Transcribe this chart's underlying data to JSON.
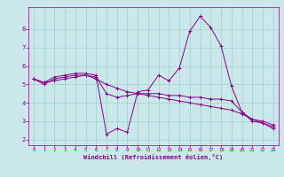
{
  "xlabel": "Windchill (Refroidissement éolien,°C)",
  "ylabel": "",
  "bg_color": "#cae8ea",
  "grid_color": "#9dcfcf",
  "line_color": "#880088",
  "xlim": [
    -0.5,
    23.5
  ],
  "ylim": [
    1.7,
    9.2
  ],
  "xticks": [
    0,
    1,
    2,
    3,
    4,
    5,
    6,
    7,
    8,
    9,
    10,
    11,
    12,
    13,
    14,
    15,
    16,
    17,
    18,
    19,
    20,
    21,
    22,
    23
  ],
  "yticks": [
    2,
    3,
    4,
    5,
    6,
    7,
    8
  ],
  "series": [
    {
      "x": [
        0,
        1,
        2,
        3,
        4,
        5,
        6,
        7,
        8,
        9,
        10,
        11,
        12,
        13,
        14,
        15,
        16,
        17,
        18,
        19,
        20,
        21,
        22,
        23
      ],
      "y": [
        5.3,
        5.1,
        5.4,
        5.5,
        5.6,
        5.6,
        5.5,
        2.3,
        2.6,
        2.4,
        4.6,
        4.7,
        5.5,
        5.2,
        5.9,
        7.9,
        8.7,
        8.1,
        7.1,
        4.9,
        3.5,
        3.0,
        2.9,
        2.7
      ]
    },
    {
      "x": [
        0,
        1,
        2,
        3,
        4,
        5,
        6,
        7,
        8,
        9,
        10,
        11,
        12,
        13,
        14,
        15,
        16,
        17,
        18,
        19,
        20,
        21,
        22,
        23
      ],
      "y": [
        5.3,
        5.0,
        5.3,
        5.4,
        5.5,
        5.5,
        5.4,
        4.5,
        4.3,
        4.4,
        4.5,
        4.5,
        4.5,
        4.4,
        4.4,
        4.3,
        4.3,
        4.2,
        4.2,
        4.1,
        3.5,
        3.1,
        3.0,
        2.8
      ]
    },
    {
      "x": [
        0,
        1,
        2,
        3,
        4,
        5,
        6,
        7,
        8,
        9,
        10,
        11,
        12,
        13,
        14,
        15,
        16,
        17,
        18,
        19,
        20,
        21,
        22,
        23
      ],
      "y": [
        5.3,
        5.1,
        5.2,
        5.3,
        5.4,
        5.5,
        5.3,
        5.0,
        4.8,
        4.6,
        4.5,
        4.4,
        4.3,
        4.2,
        4.1,
        4.0,
        3.9,
        3.8,
        3.7,
        3.6,
        3.4,
        3.1,
        2.9,
        2.6
      ]
    }
  ]
}
